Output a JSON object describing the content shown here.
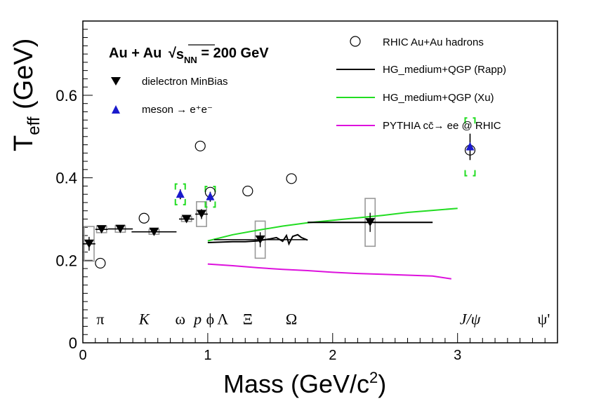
{
  "chart_data": {
    "type": "scatter",
    "title_prefix": "Au + Au ",
    "title_sqrt_s": "s",
    "title_sub": "NN",
    "title_suffix": " = 200 GeV",
    "xlabel": "Mass (GeV/c",
    "xlabel_sup": "2",
    "xlabel_close": ")",
    "ylabel_main": "T",
    "ylabel_sub": "eff",
    "ylabel_unit": " (GeV)",
    "xlim": [
      0,
      3.8
    ],
    "ylim": [
      0,
      0.78
    ],
    "x_ticks": [
      "0",
      "1",
      "2",
      "3"
    ],
    "y_ticks": [
      "0",
      "0.2",
      "0.4",
      "0.6"
    ],
    "x_tick_values": [
      0,
      1,
      2,
      3
    ],
    "y_tick_values": [
      0,
      0.2,
      0.4,
      0.6
    ],
    "particles": [
      {
        "label": "π",
        "x": 0.14
      },
      {
        "label": "K",
        "x": 0.49
      },
      {
        "label": "ω",
        "x": 0.78
      },
      {
        "label": "p",
        "x": 0.92
      },
      {
        "label": "ϕ",
        "x": 1.02
      },
      {
        "label": "Λ",
        "x": 1.12
      },
      {
        "label": "Ξ",
        "x": 1.32
      },
      {
        "label": "Ω",
        "x": 1.67
      },
      {
        "label": "J/ψ",
        "x": 3.1
      },
      {
        "label": "ψ'",
        "x": 3.69
      }
    ],
    "legend": {
      "hadrons": "RHIC Au+Au hadrons",
      "rapp": "HG_medium+QGP (Rapp)",
      "xu": "HG_medium+QGP (Xu)",
      "pythia": "PYTHIA cc̄→ ee @ RHIC",
      "dielectron": "dielectron MinBias",
      "meson": "meson → e⁺e⁻"
    },
    "colors": {
      "rapp": "#000000",
      "xu": "#22dd22",
      "pythia": "#dd11dd",
      "meson": "#1a1acc",
      "syst_grey": "#999999",
      "syst_green": "#22dd22"
    },
    "series": [
      {
        "name": "RHIC Au+Au hadrons",
        "points": [
          {
            "x": 0.14,
            "y": 0.193
          },
          {
            "x": 0.49,
            "y": 0.302
          },
          {
            "x": 0.94,
            "y": 0.477
          },
          {
            "x": 1.02,
            "y": 0.365
          },
          {
            "x": 1.32,
            "y": 0.368
          },
          {
            "x": 1.67,
            "y": 0.398
          },
          {
            "x": 3.1,
            "y": 0.467
          }
        ]
      },
      {
        "name": "dielectron MinBias",
        "points": [
          {
            "x": 0.05,
            "y": 0.24,
            "xerr": 0.05,
            "syst": 0.042
          },
          {
            "x": 0.15,
            "y": 0.275,
            "xerr": 0.05,
            "syst": 0.008
          },
          {
            "x": 0.3,
            "y": 0.276,
            "xerr": 0.1,
            "syst": 0.008
          },
          {
            "x": 0.57,
            "y": 0.269,
            "xerr": 0.18,
            "syst": 0.006
          },
          {
            "x": 0.83,
            "y": 0.3,
            "xerr": 0.06,
            "syst": 0.006
          },
          {
            "x": 0.95,
            "y": 0.312,
            "xerr": 0.05,
            "syst": 0.03
          },
          {
            "x": 1.42,
            "y": 0.25,
            "xerr": 0.37,
            "syst": 0.045
          },
          {
            "x": 2.3,
            "y": 0.292,
            "xerr": 0.5,
            "syst": 0.058
          }
        ]
      },
      {
        "name": "meson → e⁺e⁻",
        "points": [
          {
            "x": 0.78,
            "y": 0.36,
            "err": 0.012,
            "syst": 0.025
          },
          {
            "x": 1.02,
            "y": 0.354,
            "err": 0.012,
            "syst": 0.025
          },
          {
            "x": 3.1,
            "y": 0.475,
            "err": 0.032,
            "syst": 0.07
          }
        ]
      },
      {
        "name": "HG_medium+QGP (Rapp)",
        "points": [
          [
            1.0,
            0.243
          ],
          [
            1.1,
            0.244
          ],
          [
            1.2,
            0.245
          ],
          [
            1.3,
            0.245
          ],
          [
            1.4,
            0.247
          ],
          [
            1.5,
            0.252
          ],
          [
            1.55,
            0.255
          ],
          [
            1.6,
            0.246
          ],
          [
            1.63,
            0.26
          ],
          [
            1.65,
            0.24
          ],
          [
            1.68,
            0.258
          ],
          [
            1.72,
            0.262
          ],
          [
            1.75,
            0.255
          ],
          [
            1.8,
            0.249
          ],
          [
            1.8,
            0.292
          ],
          [
            2.8,
            0.292
          ]
        ]
      },
      {
        "name": "HG_medium+QGP (Xu)",
        "points": [
          [
            1.0,
            0.247
          ],
          [
            1.2,
            0.262
          ],
          [
            1.4,
            0.273
          ],
          [
            1.6,
            0.283
          ],
          [
            1.8,
            0.291
          ],
          [
            2.0,
            0.297
          ],
          [
            2.2,
            0.303
          ],
          [
            2.4,
            0.309
          ],
          [
            2.6,
            0.316
          ],
          [
            2.8,
            0.321
          ],
          [
            3.0,
            0.326
          ]
        ]
      },
      {
        "name": "PYTHIA cc̄→ ee @ RHIC",
        "points": [
          [
            1.0,
            0.191
          ],
          [
            1.2,
            0.187
          ],
          [
            1.4,
            0.182
          ],
          [
            1.6,
            0.178
          ],
          [
            1.8,
            0.175
          ],
          [
            2.0,
            0.171
          ],
          [
            2.2,
            0.168
          ],
          [
            2.4,
            0.166
          ],
          [
            2.6,
            0.164
          ],
          [
            2.8,
            0.162
          ],
          [
            2.95,
            0.155
          ]
        ]
      }
    ]
  }
}
